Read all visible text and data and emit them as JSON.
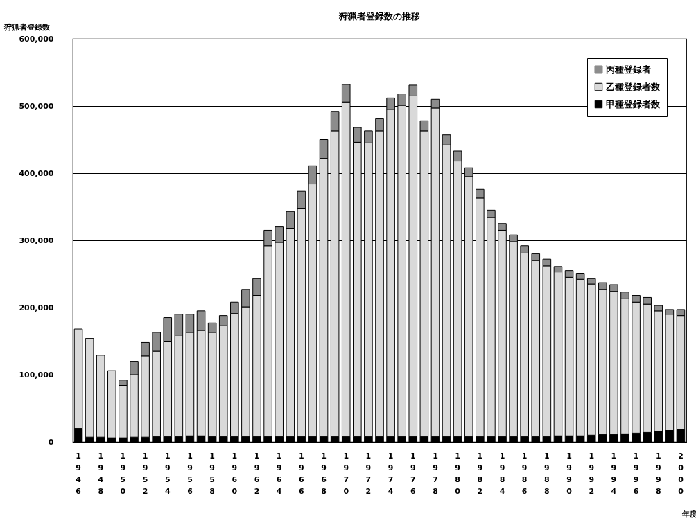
{
  "chart_data": {
    "type": "bar",
    "title": "狩猟者登録数の推移",
    "ylabel": "狩猟者登録数",
    "xlabel": "年度",
    "stacked": true,
    "grid": "y",
    "legend": "top right",
    "categories": [
      "1946",
      null,
      "1948",
      null,
      "1950",
      null,
      "1952",
      null,
      "1954",
      null,
      "1956",
      null,
      "1958",
      null,
      "1960",
      null,
      "1962",
      null,
      "1964",
      null,
      "1966",
      null,
      "1968",
      null,
      "1970",
      null,
      "1972",
      null,
      "1974",
      null,
      "1976",
      null,
      "1978",
      null,
      "1980",
      null,
      "1982",
      null,
      "1984",
      null,
      "1986",
      null,
      "1988",
      null,
      "1990",
      null,
      "1992",
      null,
      "1994",
      null,
      "1996",
      null,
      "1998",
      null,
      "2000"
    ],
    "ylim": [
      0,
      600000
    ],
    "yticks": [
      0,
      {
        "value": 100000,
        "label": "100,000"
      },
      {
        "value": 200000,
        "label": "200,000"
      },
      {
        "value": 300000,
        "label": "300,000"
      },
      {
        "value": 400000,
        "label": "400,000"
      },
      {
        "value": 500000,
        "label": "500,000"
      },
      {
        "value": 600000,
        "label": "600,000"
      }
    ],
    "series": [
      {
        "name": "甲種登録者数",
        "color": "#000000",
        "values": [
          20000,
          7000,
          7000,
          6000,
          6000,
          7000,
          7000,
          8000,
          8000,
          8000,
          9000,
          9000,
          8000,
          8000,
          8000,
          8000,
          8000,
          8000,
          8000,
          8000,
          8000,
          8000,
          8000,
          8000,
          8000,
          8000,
          8000,
          8000,
          8000,
          8000,
          8000,
          8000,
          8000,
          8000,
          8000,
          8000,
          8000,
          8000,
          8000,
          8000,
          8000,
          8000,
          8000,
          9000,
          9000,
          9000,
          10000,
          11000,
          11000,
          12000,
          13000,
          14000,
          16000,
          17000,
          19000
        ]
      },
      {
        "name": "乙種登録者数",
        "color": "#d9d9d9",
        "values": [
          148000,
          147000,
          122000,
          100000,
          78000,
          93000,
          121000,
          127000,
          141000,
          151000,
          154000,
          157000,
          155000,
          165000,
          183000,
          193000,
          210000,
          284000,
          289000,
          310000,
          339000,
          376000,
          414000,
          455000,
          498000,
          438000,
          437000,
          455000,
          487000,
          493000,
          507000,
          455000,
          489000,
          434000,
          410000,
          387000,
          355000,
          326000,
          307000,
          290000,
          273000,
          262000,
          254000,
          244000,
          236000,
          233000,
          225000,
          216000,
          213000,
          201000,
          195000,
          191000,
          179000,
          173000,
          169000
        ]
      },
      {
        "name": "丙種登録者",
        "color": "#8c8c8c",
        "values": [
          0,
          0,
          0,
          0,
          8000,
          20000,
          20000,
          28000,
          36000,
          31000,
          27000,
          29000,
          14000,
          15000,
          17000,
          26000,
          25000,
          23000,
          23000,
          25000,
          26000,
          27000,
          28000,
          29000,
          26000,
          22000,
          18000,
          18000,
          17000,
          17000,
          16000,
          15000,
          13000,
          15000,
          15000,
          13000,
          13000,
          11000,
          10000,
          10000,
          11000,
          10000,
          10000,
          8000,
          10000,
          9000,
          8000,
          10000,
          10000,
          10000,
          10000,
          10000,
          8000,
          7000,
          9000
        ]
      }
    ]
  }
}
